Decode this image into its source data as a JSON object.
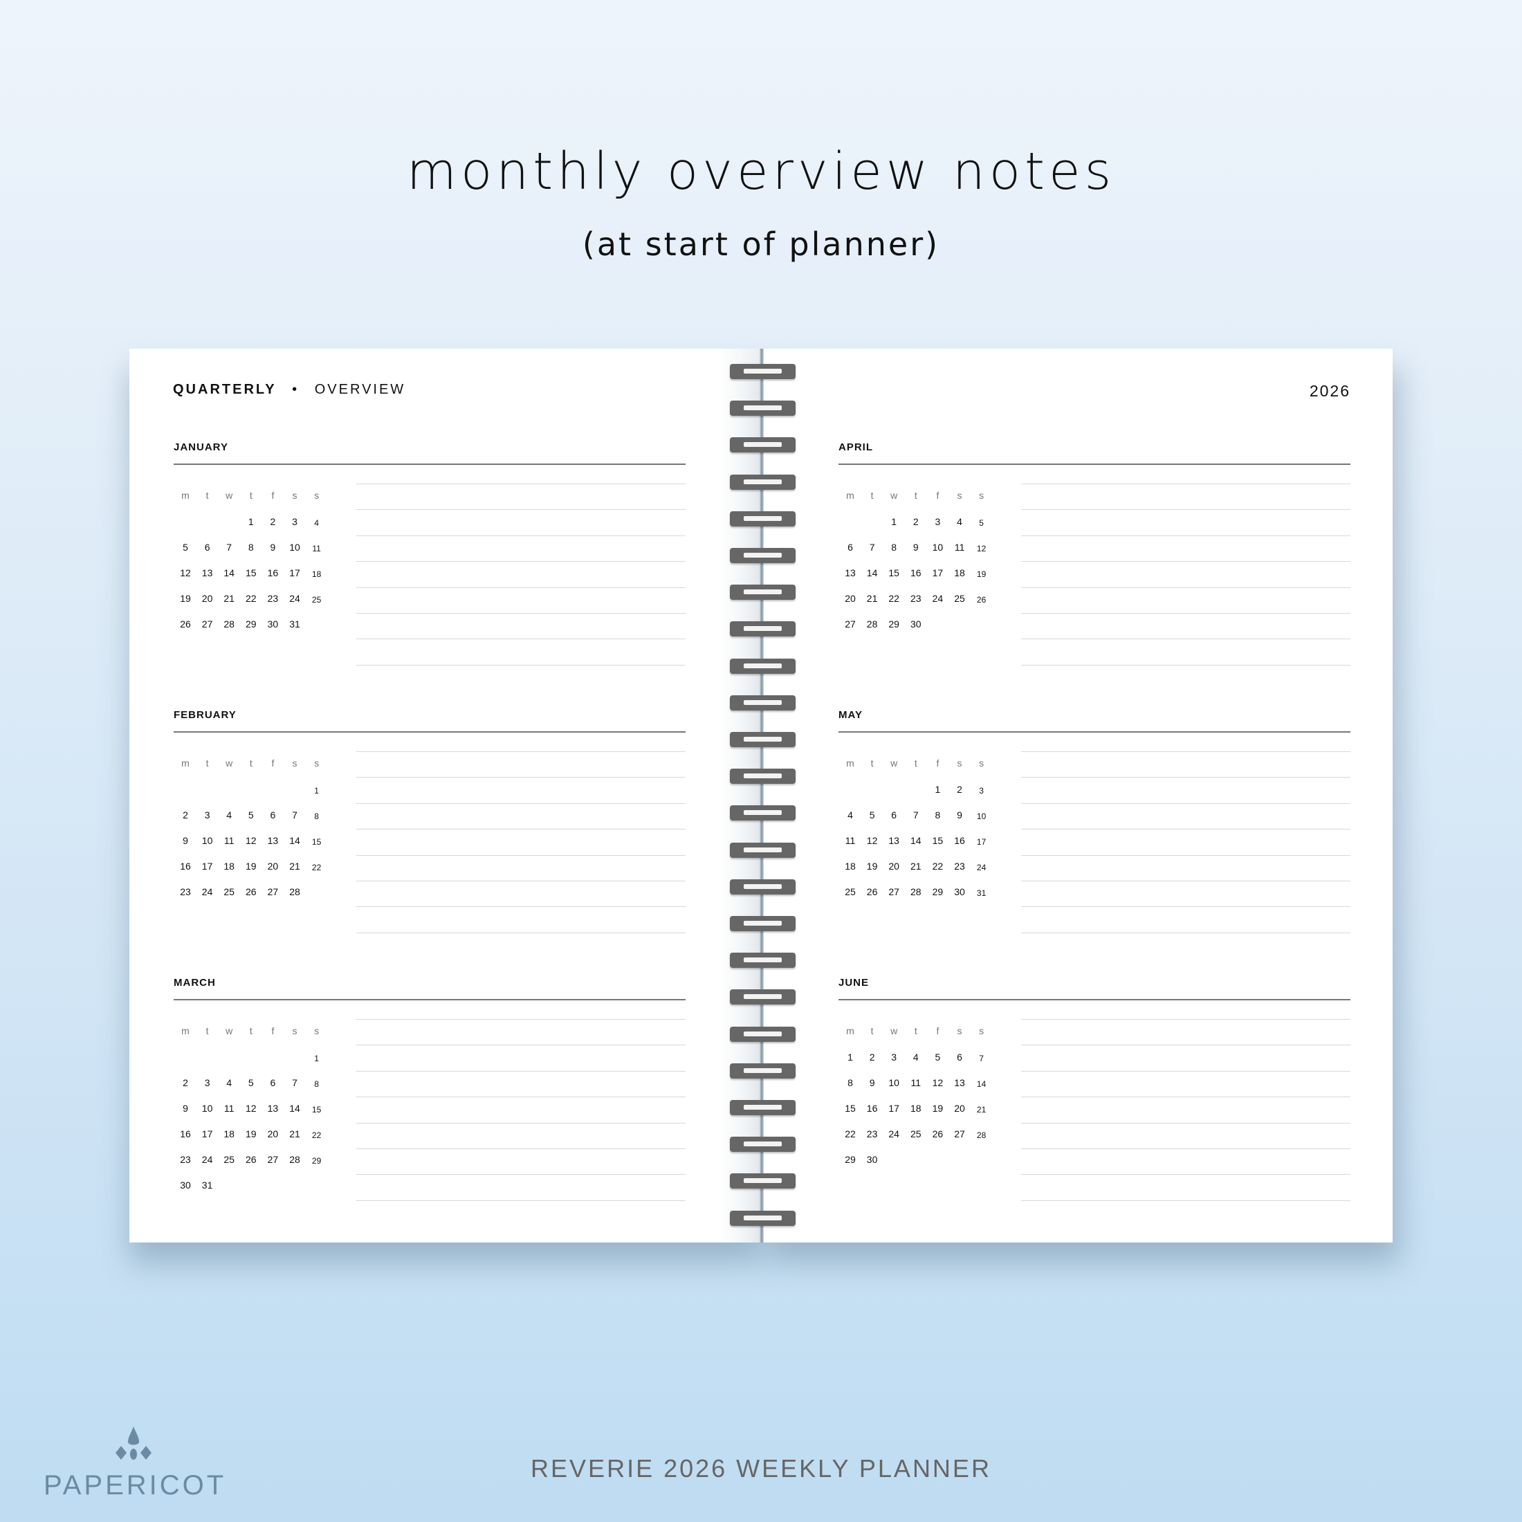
{
  "heading": {
    "title": "monthly overview notes",
    "subtitle": "(at start of planner)"
  },
  "planner": {
    "header_bold": "QUARTERLY",
    "header_separator": "•",
    "header_light": "OVERVIEW",
    "year": "2026",
    "weekday_labels": [
      "m",
      "t",
      "w",
      "t",
      "f",
      "s",
      "s"
    ],
    "months": [
      {
        "name": "JANUARY",
        "weeks": [
          [
            "",
            "",
            "",
            "1",
            "2",
            "3",
            "4"
          ],
          [
            "5",
            "6",
            "7",
            "8",
            "9",
            "10",
            "11"
          ],
          [
            "12",
            "13",
            "14",
            "15",
            "16",
            "17",
            "18"
          ],
          [
            "19",
            "20",
            "21",
            "22",
            "23",
            "24",
            "25"
          ],
          [
            "26",
            "27",
            "28",
            "29",
            "30",
            "31",
            ""
          ]
        ]
      },
      {
        "name": "FEBRUARY",
        "weeks": [
          [
            "",
            "",
            "",
            "",
            "",
            "",
            "1"
          ],
          [
            "2",
            "3",
            "4",
            "5",
            "6",
            "7",
            "8"
          ],
          [
            "9",
            "10",
            "11",
            "12",
            "13",
            "14",
            "15"
          ],
          [
            "16",
            "17",
            "18",
            "19",
            "20",
            "21",
            "22"
          ],
          [
            "23",
            "24",
            "25",
            "26",
            "27",
            "28",
            ""
          ]
        ]
      },
      {
        "name": "MARCH",
        "weeks": [
          [
            "",
            "",
            "",
            "",
            "",
            "",
            "1"
          ],
          [
            "2",
            "3",
            "4",
            "5",
            "6",
            "7",
            "8"
          ],
          [
            "9",
            "10",
            "11",
            "12",
            "13",
            "14",
            "15"
          ],
          [
            "16",
            "17",
            "18",
            "19",
            "20",
            "21",
            "22"
          ],
          [
            "23",
            "24",
            "25",
            "26",
            "27",
            "28",
            "29"
          ],
          [
            "30",
            "31",
            "",
            "",
            "",
            "",
            ""
          ]
        ]
      },
      {
        "name": "APRIL",
        "weeks": [
          [
            "",
            "",
            "1",
            "2",
            "3",
            "4",
            "5"
          ],
          [
            "6",
            "7",
            "8",
            "9",
            "10",
            "11",
            "12"
          ],
          [
            "13",
            "14",
            "15",
            "16",
            "17",
            "18",
            "19"
          ],
          [
            "20",
            "21",
            "22",
            "23",
            "24",
            "25",
            "26"
          ],
          [
            "27",
            "28",
            "29",
            "30",
            "",
            "",
            ""
          ]
        ]
      },
      {
        "name": "MAY",
        "weeks": [
          [
            "",
            "",
            "",
            "",
            "1",
            "2",
            "3"
          ],
          [
            "4",
            "5",
            "6",
            "7",
            "8",
            "9",
            "10"
          ],
          [
            "11",
            "12",
            "13",
            "14",
            "15",
            "16",
            "17"
          ],
          [
            "18",
            "19",
            "20",
            "21",
            "22",
            "23",
            "24"
          ],
          [
            "25",
            "26",
            "27",
            "28",
            "29",
            "30",
            "31"
          ]
        ]
      },
      {
        "name": "JUNE",
        "weeks": [
          [
            "1",
            "2",
            "3",
            "4",
            "5",
            "6",
            "7"
          ],
          [
            "8",
            "9",
            "10",
            "11",
            "12",
            "13",
            "14"
          ],
          [
            "15",
            "16",
            "17",
            "18",
            "19",
            "20",
            "21"
          ],
          [
            "22",
            "23",
            "24",
            "25",
            "26",
            "27",
            "28"
          ],
          [
            "29",
            "30",
            "",
            "",
            "",
            "",
            ""
          ]
        ]
      }
    ]
  },
  "brand": {
    "logo_text": "PAPERICOT",
    "product": "REVERIE 2026 WEEKLY PLANNER",
    "logo_color": "#6b8aa3"
  }
}
